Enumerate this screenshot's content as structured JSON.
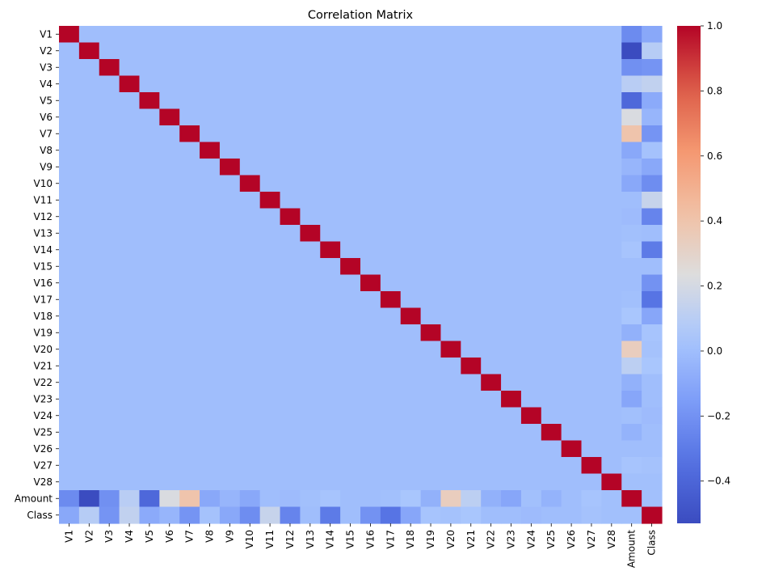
{
  "chart_data": {
    "type": "heatmap",
    "title": "Correlation Matrix",
    "labels": [
      "V1",
      "V2",
      "V3",
      "V4",
      "V5",
      "V6",
      "V7",
      "V8",
      "V9",
      "V10",
      "V11",
      "V12",
      "V13",
      "V14",
      "V15",
      "V16",
      "V17",
      "V18",
      "V19",
      "V20",
      "V21",
      "V22",
      "V23",
      "V24",
      "V25",
      "V26",
      "V27",
      "V28",
      "Amount",
      "Class"
    ],
    "amount_corr": [
      -0.23,
      -0.53,
      -0.21,
      0.1,
      -0.39,
      0.22,
      0.4,
      -0.1,
      -0.04,
      -0.1,
      0.0,
      -0.01,
      0.01,
      0.03,
      -0.0,
      -0.0,
      0.01,
      0.04,
      -0.06,
      0.34,
      0.11,
      -0.06,
      -0.11,
      0.01,
      -0.05,
      -0.0,
      0.03,
      0.01,
      1.0,
      0.01
    ],
    "class_corr": [
      -0.1,
      0.09,
      -0.19,
      0.13,
      -0.09,
      -0.04,
      -0.19,
      0.02,
      -0.1,
      -0.22,
      0.15,
      -0.26,
      -0.0,
      -0.3,
      -0.0,
      -0.2,
      -0.33,
      -0.11,
      0.03,
      0.02,
      0.04,
      0.0,
      -0.0,
      -0.01,
      0.0,
      0.0,
      0.02,
      0.01,
      0.01,
      1.0
    ],
    "zlim": [
      -0.53,
      1.0
    ],
    "colormap": "coolwarm",
    "colorbar_ticks": [
      "1.0",
      "0.8",
      "0.6",
      "0.4",
      "0.2",
      "0.0",
      "−0.2",
      "−0.4"
    ],
    "colorbar_tick_values": [
      1.0,
      0.8,
      0.6,
      0.4,
      0.2,
      0.0,
      -0.2,
      -0.4
    ]
  }
}
